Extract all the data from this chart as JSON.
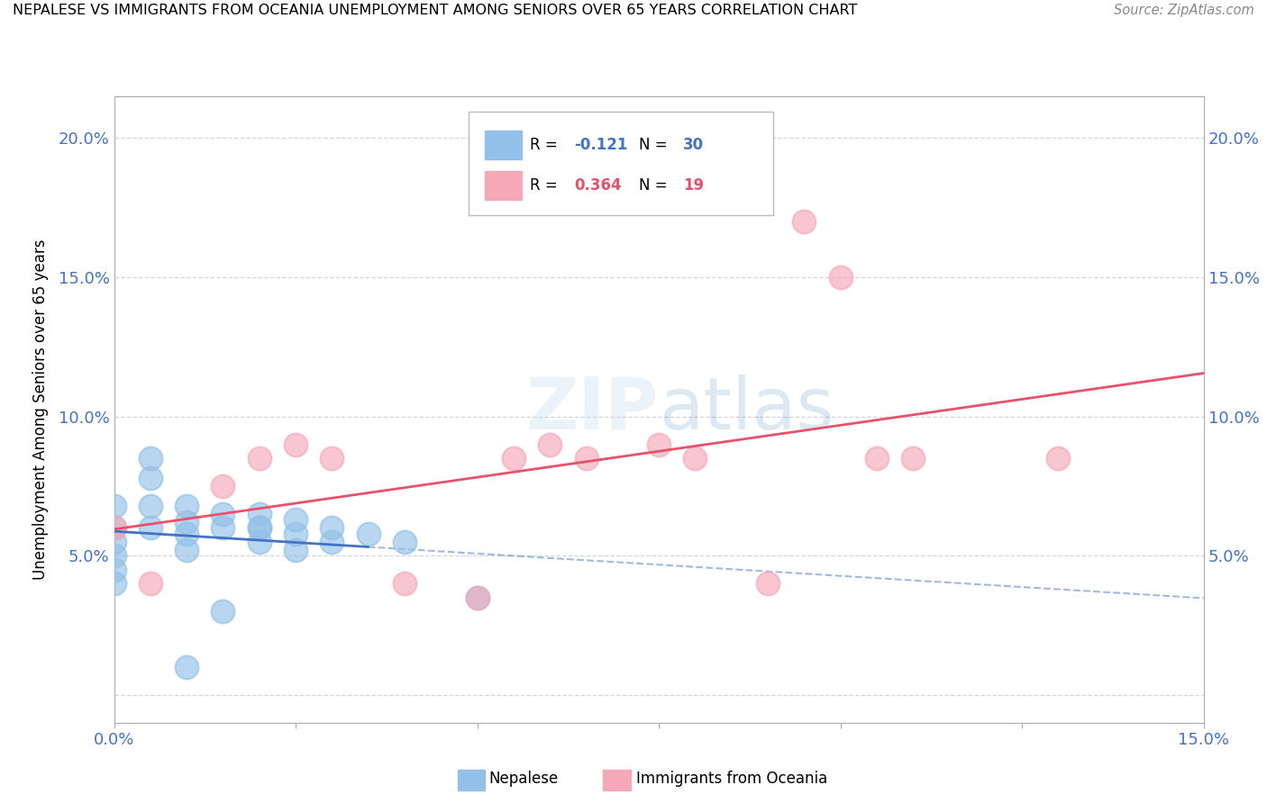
{
  "title": "NEPALESE VS IMMIGRANTS FROM OCEANIA UNEMPLOYMENT AMONG SENIORS OVER 65 YEARS CORRELATION CHART",
  "source": "Source: ZipAtlas.com",
  "ylabel": "Unemployment Among Seniors over 65 years",
  "xlim": [
    0.0,
    0.15
  ],
  "ylim": [
    -0.01,
    0.215
  ],
  "nepalese_R": -0.121,
  "nepalese_N": 30,
  "oceania_R": 0.364,
  "oceania_N": 19,
  "nepalese_color": "#92c0e8",
  "oceania_color": "#f5a8b8",
  "nepalese_line_color": "#4472c4",
  "oceania_line_color": "#e8516a",
  "watermark_color": "#c8dff0",
  "nepalese_x": [
    0.0,
    0.0,
    0.0,
    0.0,
    0.0,
    0.0,
    0.005,
    0.005,
    0.005,
    0.005,
    0.01,
    0.01,
    0.01,
    0.01,
    0.015,
    0.015,
    0.02,
    0.02,
    0.02,
    0.025,
    0.025,
    0.025,
    0.03,
    0.03,
    0.035,
    0.04,
    0.05,
    0.01,
    0.015,
    0.02
  ],
  "nepalese_y": [
    0.06,
    0.068,
    0.055,
    0.05,
    0.045,
    0.04,
    0.085,
    0.078,
    0.068,
    0.06,
    0.068,
    0.062,
    0.058,
    0.052,
    0.065,
    0.06,
    0.065,
    0.06,
    0.055,
    0.063,
    0.058,
    0.052,
    0.06,
    0.055,
    0.058,
    0.055,
    0.035,
    0.01,
    0.03,
    0.06
  ],
  "oceania_x": [
    0.0,
    0.005,
    0.015,
    0.02,
    0.025,
    0.03,
    0.04,
    0.05,
    0.055,
    0.06,
    0.065,
    0.075,
    0.08,
    0.09,
    0.095,
    0.1,
    0.105,
    0.11,
    0.13
  ],
  "oceania_y": [
    0.06,
    0.04,
    0.075,
    0.085,
    0.09,
    0.085,
    0.04,
    0.035,
    0.085,
    0.09,
    0.085,
    0.09,
    0.085,
    0.04,
    0.17,
    0.15,
    0.085,
    0.085,
    0.085
  ]
}
